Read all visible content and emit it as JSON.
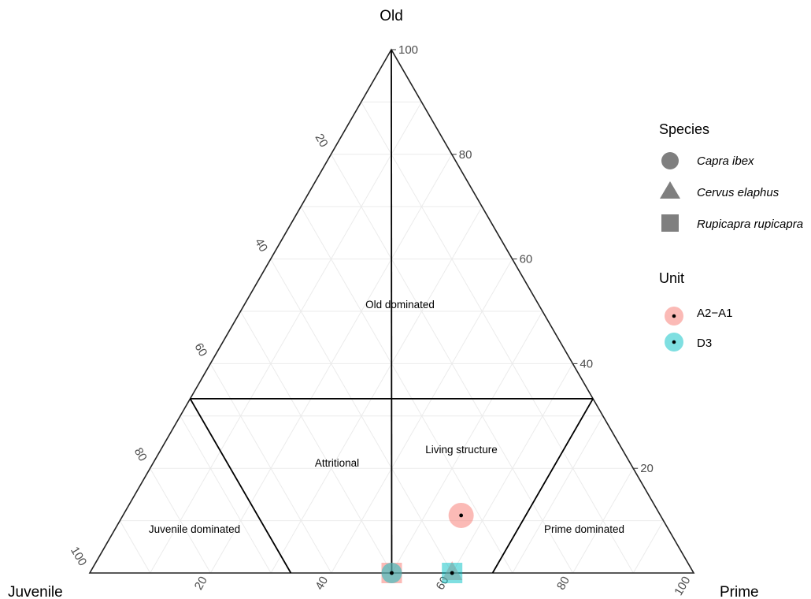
{
  "chart_data": {
    "type": "ternary",
    "axes": {
      "top": "Old",
      "left": "Juvenile",
      "right": "Prime"
    },
    "ticks": [
      20,
      40,
      60,
      80,
      100
    ],
    "grid": true,
    "regions": [
      {
        "name": "Old dominated",
        "label": "Old dominated"
      },
      {
        "name": "Attritional",
        "label": "Attritional"
      },
      {
        "name": "Living structure",
        "label": "Living structure"
      },
      {
        "name": "Juvenile dominated",
        "label": "Juvenile dominated"
      },
      {
        "name": "Prime dominated",
        "label": "Prime dominated"
      }
    ],
    "legend": {
      "placement": "right",
      "species_title": "Species",
      "species": [
        {
          "name": "Capra ibex",
          "shape": "circle"
        },
        {
          "name": "Cervus elaphus",
          "shape": "triangle"
        },
        {
          "name": "Rupicapra rupicapra",
          "shape": "square"
        }
      ],
      "unit_title": "Unit",
      "units": [
        {
          "name": "A2−A1",
          "color": "#f8766d"
        },
        {
          "name": "D3",
          "color": "#00bfc4"
        }
      ]
    },
    "points": [
      {
        "species": "Rupicapra rupicapra",
        "unit": "A2−A1",
        "juvenile": 50,
        "prime": 50,
        "old": 0
      },
      {
        "species": "Capra ibex",
        "unit": "D3",
        "juvenile": 50,
        "prime": 50,
        "old": 0
      },
      {
        "species": "Cervus elaphus",
        "unit": "A2−A1",
        "juvenile": 40,
        "prime": 60,
        "old": 0
      },
      {
        "species": "Rupicapra rupicapra",
        "unit": "D3",
        "juvenile": 40,
        "prime": 60,
        "old": 0
      },
      {
        "species": "Capra ibex",
        "unit": "A2−A1",
        "juvenile": 33,
        "prime": 56,
        "old": 11
      }
    ],
    "region_lines": [
      {
        "from": {
          "juvenile": 66.7,
          "prime": 0,
          "old": 33.3
        },
        "to": {
          "juvenile": 0,
          "prime": 66.7,
          "old": 33.3
        }
      },
      {
        "from": {
          "juvenile": 50,
          "prime": 50,
          "old": 0
        },
        "to": {
          "juvenile": 0,
          "prime": 0,
          "old": 100
        }
      },
      {
        "from": {
          "juvenile": 66.7,
          "prime": 0,
          "old": 33.3
        },
        "to": {
          "juvenile": 66.7,
          "prime": 33.3,
          "old": 0
        }
      },
      {
        "from": {
          "juvenile": 0,
          "prime": 66.7,
          "old": 33.3
        },
        "to": {
          "juvenile": 33.3,
          "prime": 66.7,
          "old": 0
        }
      }
    ]
  }
}
